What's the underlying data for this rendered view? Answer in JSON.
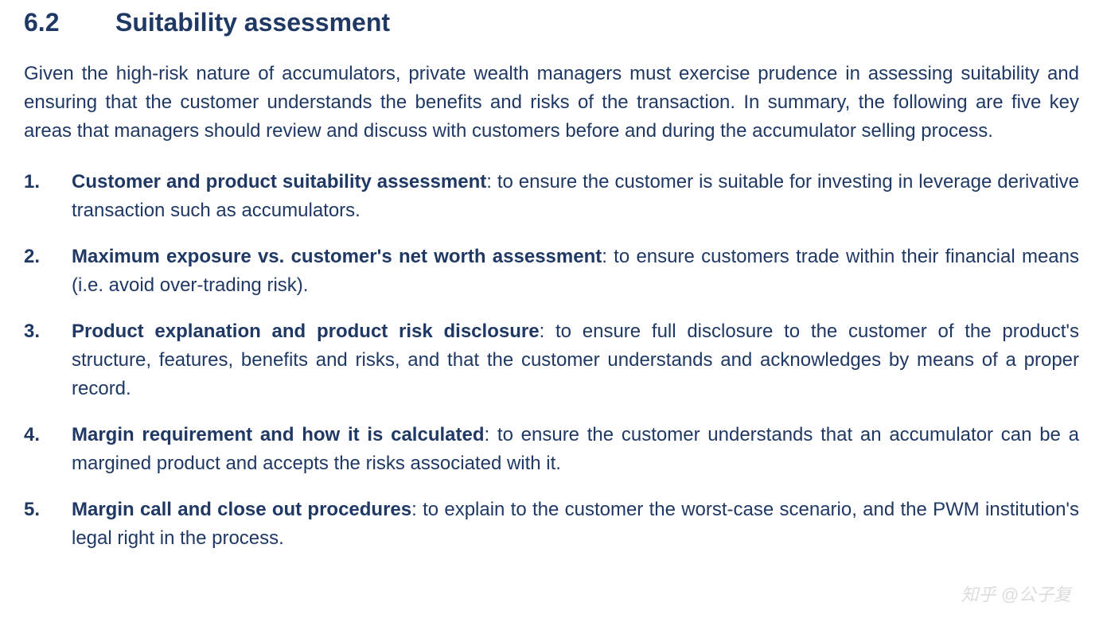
{
  "heading": {
    "number": "6.2",
    "title": "Suitability assessment"
  },
  "intro": "Given the high-risk nature of accumulators, private wealth managers must exercise prudence in assessing suitability and ensuring that the customer understands the benefits and risks of the transaction. In summary, the following are five key areas that managers should review and discuss with customers before and during the accumulator selling process.",
  "items": [
    {
      "bold": "Customer and product suitability assessment",
      "rest": ": to ensure the customer is suitable for investing in leverage derivative transaction such as accumulators."
    },
    {
      "bold": "Maximum exposure vs. customer's net worth assessment",
      "rest": ": to ensure customers trade within their financial means (i.e. avoid over-trading risk)."
    },
    {
      "bold": "Product explanation and product risk disclosure",
      "rest": ": to ensure full disclosure to the customer of the product's structure, features, benefits and risks, and that the customer understands and acknowledges by means of a proper record."
    },
    {
      "bold": "Margin requirement and how it is calculated",
      "rest": ": to ensure the customer understands that an accumulator can be a margined product and accepts the risks associated with it."
    },
    {
      "bold": "Margin call and close out procedures",
      "rest": ": to explain to the customer the worst-case scenario, and the PWM institution's legal right in the process."
    }
  ],
  "watermark": "知乎 @公子复",
  "colors": {
    "text": "#1f3864",
    "background": "#ffffff",
    "watermark": "#c0c0c0"
  },
  "typography": {
    "heading_fontsize": 32,
    "body_fontsize": 24,
    "font_family": "Arial"
  }
}
